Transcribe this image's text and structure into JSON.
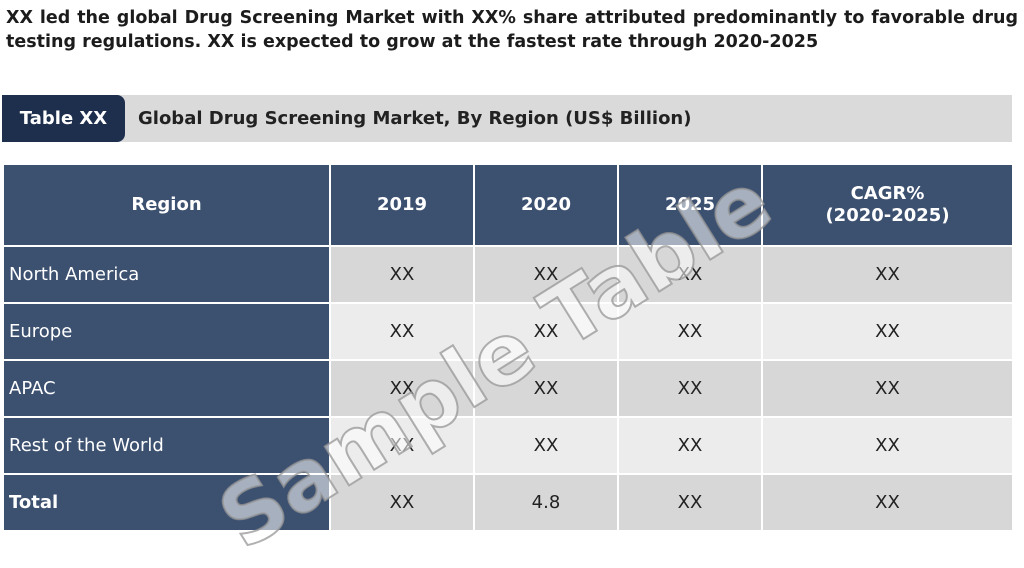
{
  "intro_text": "XX led the global Drug Screening Market with XX% share attributed predominantly to favorable drug testing regulations. XX is expected to grow at the fastest rate through 2020-2025",
  "caption": {
    "tag": "Table XX",
    "title": "Global Drug Screening Market, By Region (US$ Billion)"
  },
  "table": {
    "headers": [
      "Region",
      "2019",
      "2020",
      "2025",
      "CAGR%\n(2020-2025)"
    ],
    "rows": [
      {
        "region": "North America",
        "values": [
          "XX",
          "XX",
          "XX",
          "XX"
        ]
      },
      {
        "region": "Europe",
        "values": [
          "XX",
          "XX",
          "XX",
          "XX"
        ]
      },
      {
        "region": "APAC",
        "values": [
          "XX",
          "XX",
          "XX",
          "XX"
        ]
      },
      {
        "region": "Rest of the World",
        "values": [
          "XX",
          "XX",
          "XX",
          "XX"
        ]
      },
      {
        "region": "Total",
        "values": [
          "XX",
          "4.8",
          "XX",
          "XX"
        ]
      }
    ]
  },
  "watermark": "Sample Table",
  "colors": {
    "header_bg": "#3c5070",
    "tag_bg": "#1e2f4e",
    "row_odd": "#d7d7d7",
    "row_even": "#ececec",
    "caption_bar": "#dadada"
  }
}
